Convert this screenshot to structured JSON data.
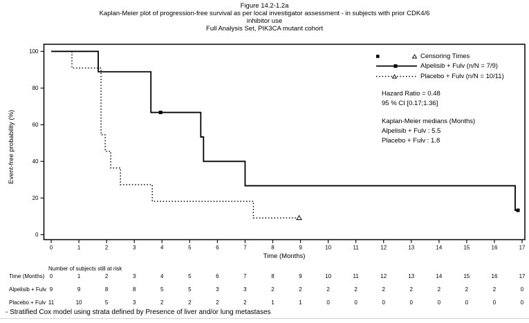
{
  "title": {
    "line1": "Figure 14.2-1.2a",
    "line2": "Kaplan-Meier plot of progression-free survival as per local investigator assessment - in subjects with prior CDK4/6",
    "line3": "inhibitor use",
    "line4": "Full Analysis Set, PIK3CA mutant cohort"
  },
  "chart_data": {
    "type": "line",
    "subtype": "kaplan-meier-step",
    "xlabel": "Time (Months)",
    "ylabel": "Event-free probability (%)",
    "xlim": [
      0,
      17
    ],
    "ylim": [
      0,
      100
    ],
    "x_ticks": [
      0,
      1,
      2,
      3,
      4,
      5,
      6,
      7,
      8,
      9,
      10,
      11,
      12,
      13,
      14,
      15,
      16,
      17
    ],
    "y_ticks": [
      0,
      20,
      40,
      60,
      80,
      100
    ],
    "grid": false,
    "legend_position": "top-right",
    "line_color": "#000000",
    "series": [
      {
        "name": "Alpelisib + Fulv (n/N = 7/9)",
        "line_style": "solid",
        "marker": "filled-square",
        "steps": [
          [
            0,
            100
          ],
          [
            1.7,
            88.9
          ],
          [
            3.6,
            66.7
          ],
          [
            5.4,
            53.3
          ],
          [
            5.5,
            40.0
          ],
          [
            7.0,
            26.7
          ],
          [
            16.75,
            13.3
          ]
        ],
        "end_x": 16.85,
        "censor_points": [
          [
            3.95,
            66.7
          ],
          [
            16.85,
            13.3
          ]
        ]
      },
      {
        "name": "Placebo + Fulv (n/N = 10/11)",
        "line_style": "dotted",
        "marker": "open-triangle",
        "steps": [
          [
            0,
            100
          ],
          [
            0.75,
            90.9
          ],
          [
            1.8,
            54.5
          ],
          [
            1.95,
            45.5
          ],
          [
            2.15,
            36.4
          ],
          [
            2.5,
            27.3
          ],
          [
            3.65,
            18.2
          ],
          [
            7.3,
            9.1
          ]
        ],
        "end_x": 8.95,
        "censor_points": [
          [
            8.95,
            9.1
          ]
        ]
      }
    ],
    "legend": {
      "censoring_label": "Censoring Times"
    },
    "annotations": {
      "hazard_ratio": "Hazard Ratio = 0.48",
      "ci": "95 % CI [0.17;1.36]",
      "medians_title": "Kaplan-Meier medians (Months)",
      "median_alpelisib": "Alpelisib + Fulv : 5.5",
      "median_placebo": "Placebo + Fulv : 1.8"
    }
  },
  "risk_table": {
    "header": "Number of subjects still at risk",
    "rows": [
      {
        "label": "Time (Months)",
        "values": [
          0,
          1,
          2,
          3,
          4,
          5,
          6,
          7,
          8,
          9,
          10,
          11,
          12,
          13,
          14,
          15,
          16,
          17
        ]
      },
      {
        "label": "Alpelisib + Fulv",
        "values": [
          9,
          9,
          8,
          8,
          5,
          5,
          3,
          3,
          2,
          2,
          2,
          2,
          2,
          2,
          2,
          2,
          2,
          0
        ]
      },
      {
        "label": "Placebo + Fulv",
        "values": [
          11,
          10,
          5,
          3,
          2,
          2,
          2,
          2,
          1,
          1,
          0,
          0,
          0,
          0,
          0,
          0,
          0,
          0
        ]
      }
    ]
  },
  "footnote": "- Stratified Cox model using strata defined by Presence of liver and/or lung metastases"
}
